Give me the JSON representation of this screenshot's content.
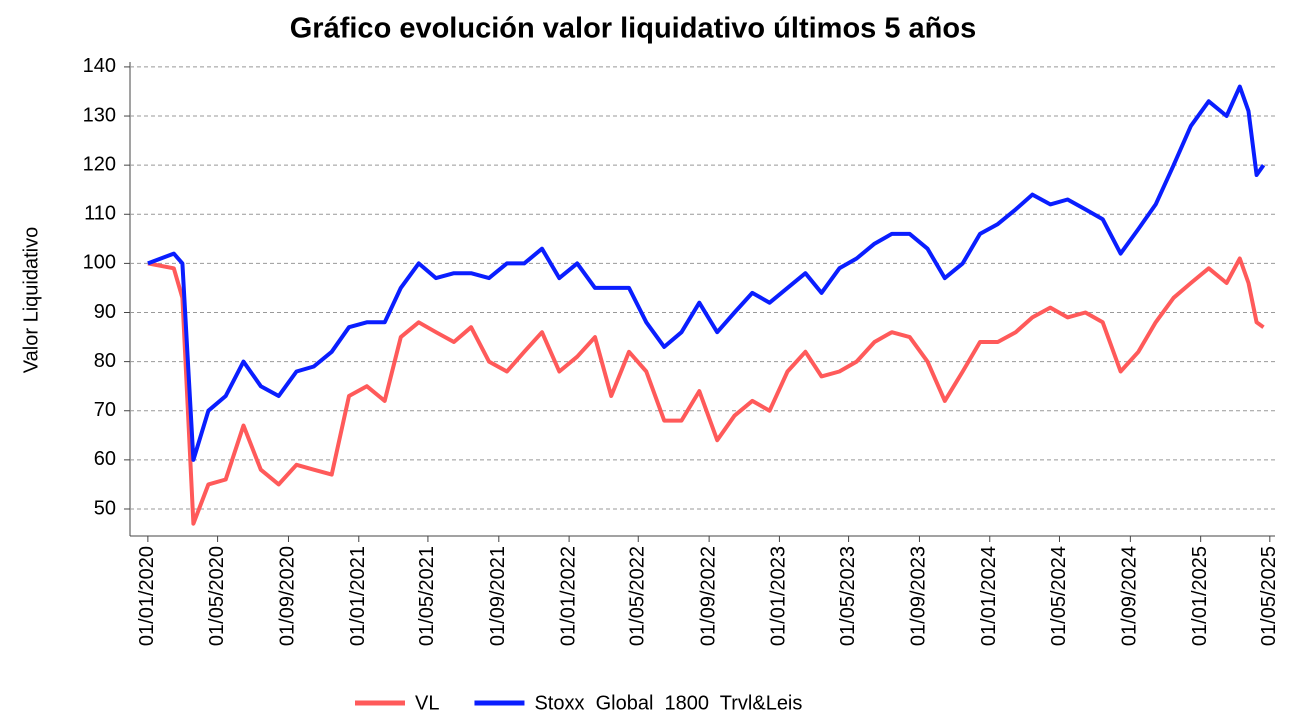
{
  "chart_data": {
    "type": "line",
    "title": "Gráfico evolución valor liquidativo últimos 5 años",
    "y_label": "Valor Liquidativo",
    "x": [
      "2020-01-01",
      "2020-02-15",
      "2020-03-01",
      "2020-03-20",
      "2020-04-15",
      "2020-05-15",
      "2020-06-15",
      "2020-07-15",
      "2020-08-15",
      "2020-09-15",
      "2020-10-15",
      "2020-11-15",
      "2020-12-15",
      "2021-01-15",
      "2021-02-15",
      "2021-03-15",
      "2021-04-15",
      "2021-05-15",
      "2021-06-15",
      "2021-07-15",
      "2021-08-15",
      "2021-09-15",
      "2021-10-15",
      "2021-11-15",
      "2021-12-15",
      "2022-01-15",
      "2022-02-15",
      "2022-03-15",
      "2022-04-15",
      "2022-05-15",
      "2022-06-15",
      "2022-07-15",
      "2022-08-15",
      "2022-09-15",
      "2022-10-15",
      "2022-11-15",
      "2022-12-15",
      "2023-01-15",
      "2023-02-15",
      "2023-03-15",
      "2023-04-15",
      "2023-05-15",
      "2023-06-15",
      "2023-07-15",
      "2023-08-15",
      "2023-09-15",
      "2023-10-15",
      "2023-11-15",
      "2023-12-15",
      "2024-01-15",
      "2024-02-15",
      "2024-03-15",
      "2024-04-15",
      "2024-05-15",
      "2024-06-15",
      "2024-07-15",
      "2024-08-15",
      "2024-09-15",
      "2024-10-15",
      "2024-11-15",
      "2024-12-15",
      "2025-01-15",
      "2025-02-15",
      "2025-03-10",
      "2025-03-25",
      "2025-04-08",
      "2025-04-20"
    ],
    "series": [
      {
        "name": "VL",
        "color": "#ff5a5a",
        "values": [
          100,
          99,
          93,
          47,
          55,
          56,
          67,
          58,
          55,
          59,
          58,
          57,
          73,
          75,
          72,
          85,
          88,
          86,
          84,
          87,
          80,
          78,
          82,
          86,
          78,
          81,
          85,
          73,
          82,
          78,
          68,
          68,
          74,
          64,
          69,
          72,
          70,
          78,
          82,
          77,
          78,
          80,
          84,
          86,
          85,
          80,
          72,
          78,
          84,
          84,
          86,
          89,
          91,
          89,
          90,
          88,
          78,
          82,
          88,
          93,
          96,
          99,
          96,
          101,
          96,
          88,
          87
        ]
      },
      {
        "name": "Stoxx  Global  1800  Trvl&Leis",
        "color": "#0a1eff",
        "values": [
          100,
          102,
          100,
          60,
          70,
          73,
          80,
          75,
          73,
          78,
          79,
          82,
          87,
          88,
          88,
          95,
          100,
          97,
          98,
          98,
          97,
          100,
          100,
          103,
          97,
          100,
          95,
          95,
          95,
          88,
          83,
          86,
          92,
          86,
          90,
          94,
          92,
          95,
          98,
          94,
          99,
          101,
          104,
          106,
          106,
          103,
          97,
          100,
          106,
          108,
          111,
          114,
          112,
          113,
          111,
          109,
          102,
          107,
          112,
          120,
          128,
          133,
          130,
          136,
          131,
          118,
          120
        ]
      }
    ],
    "xlim": [
      "2019-12-01",
      "2025-05-10"
    ],
    "xticks": [
      {
        "value": "2020-01-01",
        "label": "01/01/2020"
      },
      {
        "value": "2020-05-01",
        "label": "01/05/2020"
      },
      {
        "value": "2020-09-01",
        "label": "01/09/2020"
      },
      {
        "value": "2021-01-01",
        "label": "01/01/2021"
      },
      {
        "value": "2021-05-01",
        "label": "01/05/2021"
      },
      {
        "value": "2021-09-01",
        "label": "01/09/2021"
      },
      {
        "value": "2022-01-01",
        "label": "01/01/2022"
      },
      {
        "value": "2022-05-01",
        "label": "01/05/2022"
      },
      {
        "value": "2022-09-01",
        "label": "01/09/2022"
      },
      {
        "value": "2023-01-01",
        "label": "01/01/2023"
      },
      {
        "value": "2023-05-01",
        "label": "01/05/2023"
      },
      {
        "value": "2023-09-01",
        "label": "01/09/2023"
      },
      {
        "value": "2024-01-01",
        "label": "01/01/2024"
      },
      {
        "value": "2024-05-01",
        "label": "01/05/2024"
      },
      {
        "value": "2024-09-01",
        "label": "01/09/2024"
      },
      {
        "value": "2025-01-01",
        "label": "01/01/2025"
      },
      {
        "value": "2025-05-01",
        "label": "01/05/2025"
      }
    ],
    "ylim": [
      44.5,
      141
    ],
    "yticks": [
      50,
      60,
      70,
      80,
      90,
      100,
      110,
      120,
      130,
      140
    ],
    "grid": true
  }
}
